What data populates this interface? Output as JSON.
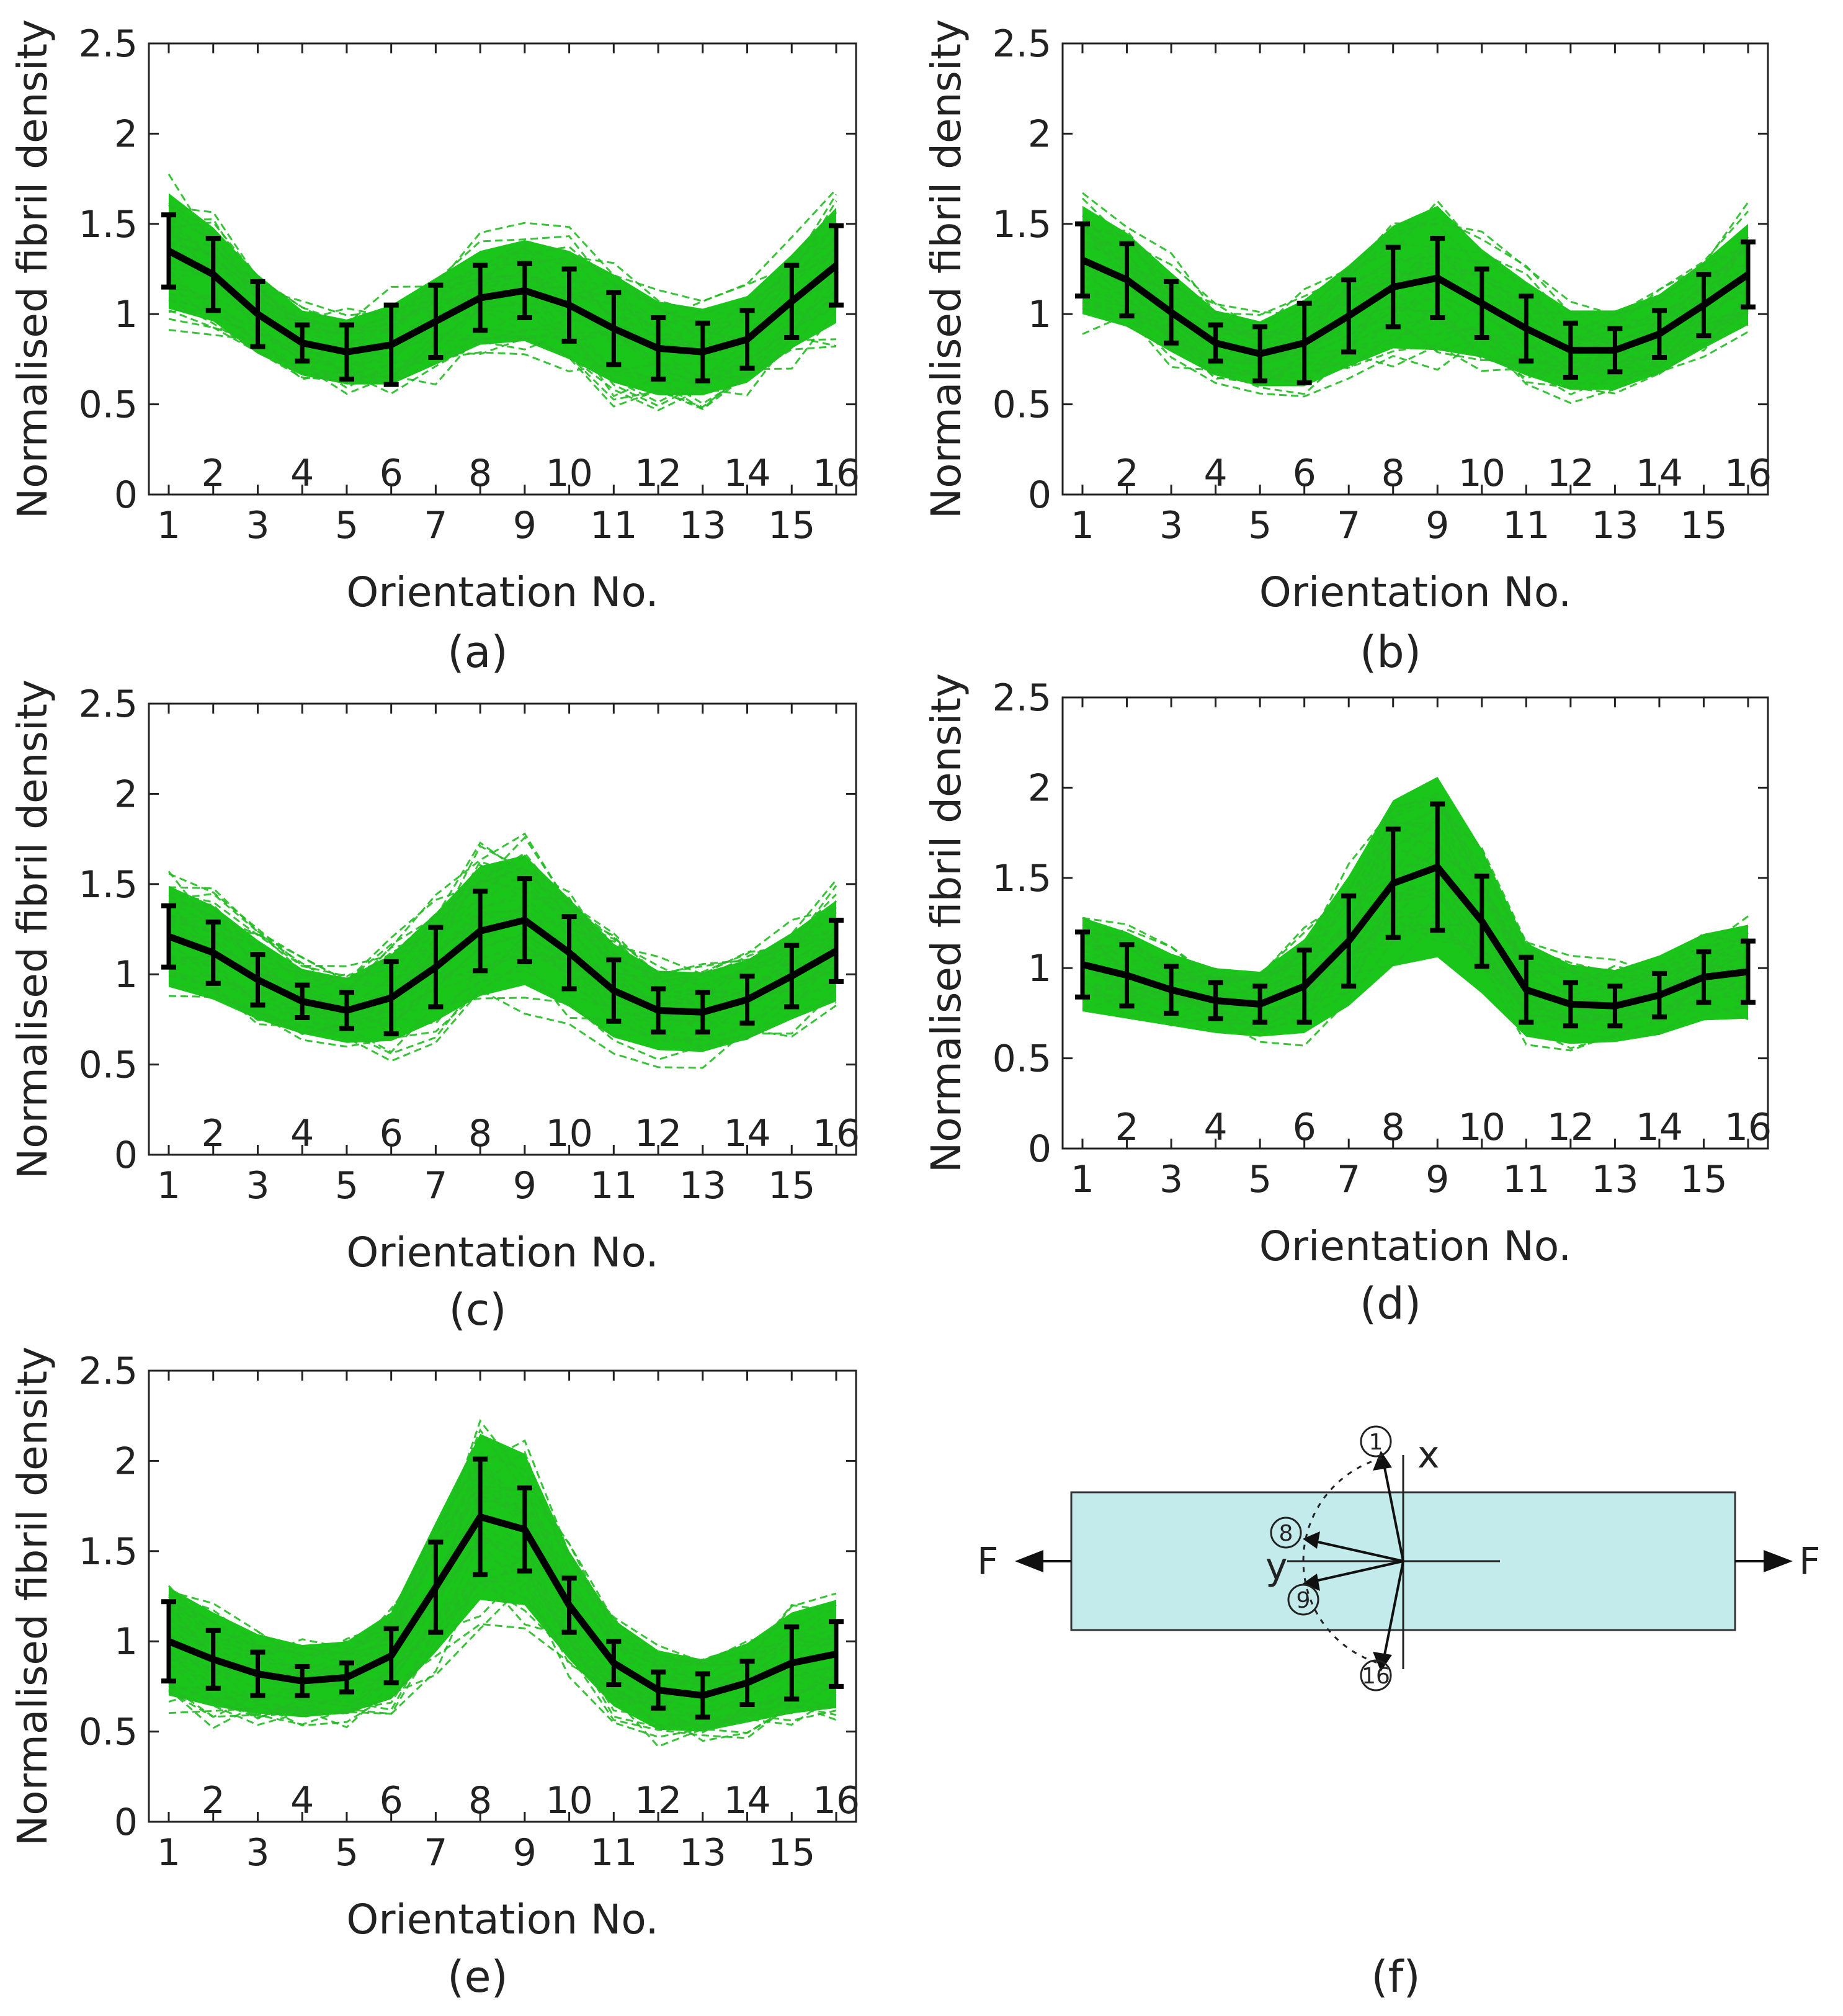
{
  "colors": {
    "band": "#00c000",
    "traces": "#22bb22",
    "mean": "#000000",
    "axis": "#222222",
    "specimen_fill": "#c3ebeb"
  },
  "axes": {
    "ylabel": "Normalised fibril density",
    "xlabel": "Orientation No.",
    "y_ticks": [
      "0",
      "0.5",
      "1",
      "1.5",
      "2",
      "2.5"
    ],
    "x_ticks_odd": [
      "1",
      "3",
      "5",
      "7",
      "9",
      "11",
      "13",
      "15"
    ],
    "x_ticks_even": [
      "2",
      "4",
      "6",
      "8",
      "10",
      "12",
      "14",
      "16"
    ]
  },
  "captions": {
    "a": "(a)",
    "b": "(b)",
    "c": "(c)",
    "d": "(d)",
    "e": "(e)",
    "f": "(f)"
  },
  "diagram": {
    "x_axis_label": "x",
    "y_axis_label": "y",
    "force_left": "F",
    "force_right": "F",
    "orientation_markers": [
      "1",
      "8",
      "9",
      "16"
    ]
  },
  "chart_data": [
    {
      "panel": "a",
      "type": "line",
      "xlabel": "Orientation No.",
      "ylabel": "Normalised fibril density",
      "xlim": [
        1,
        16
      ],
      "ylim": [
        0,
        2.5
      ],
      "x": [
        1,
        2,
        3,
        4,
        5,
        6,
        7,
        8,
        9,
        10,
        11,
        12,
        13,
        14,
        15,
        16
      ],
      "mean": [
        1.35,
        1.22,
        1.0,
        0.84,
        0.79,
        0.83,
        0.96,
        1.09,
        1.13,
        1.05,
        0.92,
        0.81,
        0.79,
        0.86,
        1.07,
        1.27
      ],
      "sd": [
        0.2,
        0.2,
        0.18,
        0.1,
        0.15,
        0.22,
        0.2,
        0.18,
        0.15,
        0.2,
        0.2,
        0.17,
        0.16,
        0.16,
        0.2,
        0.22
      ],
      "band_halfwidth": [
        0.32,
        0.26,
        0.22,
        0.18,
        0.18,
        0.22,
        0.24,
        0.26,
        0.28,
        0.3,
        0.3,
        0.26,
        0.24,
        0.24,
        0.26,
        0.32
      ],
      "grid": false
    },
    {
      "panel": "b",
      "type": "line",
      "xlabel": "Orientation No.",
      "ylabel": "Normalised fibril density",
      "xlim": [
        1,
        16
      ],
      "ylim": [
        0,
        2.5
      ],
      "x": [
        1,
        2,
        3,
        4,
        5,
        6,
        7,
        8,
        9,
        10,
        11,
        12,
        13,
        14,
        15,
        16
      ],
      "mean": [
        1.3,
        1.19,
        1.01,
        0.84,
        0.78,
        0.84,
        0.99,
        1.15,
        1.2,
        1.06,
        0.92,
        0.8,
        0.8,
        0.89,
        1.05,
        1.22
      ],
      "sd": [
        0.2,
        0.2,
        0.17,
        0.1,
        0.15,
        0.22,
        0.2,
        0.22,
        0.22,
        0.19,
        0.18,
        0.15,
        0.12,
        0.13,
        0.17,
        0.18
      ],
      "band_halfwidth": [
        0.3,
        0.26,
        0.22,
        0.18,
        0.18,
        0.24,
        0.28,
        0.34,
        0.4,
        0.3,
        0.26,
        0.22,
        0.22,
        0.22,
        0.24,
        0.28
      ],
      "grid": false
    },
    {
      "panel": "c",
      "type": "line",
      "xlabel": "Orientation No.",
      "ylabel": "Normalised fibril density",
      "xlim": [
        1,
        16
      ],
      "ylim": [
        0,
        2.5
      ],
      "x": [
        1,
        2,
        3,
        4,
        5,
        6,
        7,
        8,
        9,
        10,
        11,
        12,
        13,
        14,
        15,
        16
      ],
      "mean": [
        1.21,
        1.12,
        0.97,
        0.85,
        0.8,
        0.87,
        1.04,
        1.24,
        1.3,
        1.12,
        0.91,
        0.8,
        0.79,
        0.86,
        0.99,
        1.13
      ],
      "sd": [
        0.17,
        0.17,
        0.14,
        0.09,
        0.1,
        0.2,
        0.22,
        0.22,
        0.23,
        0.2,
        0.17,
        0.12,
        0.11,
        0.13,
        0.17,
        0.17
      ],
      "band_halfwidth": [
        0.28,
        0.26,
        0.22,
        0.18,
        0.18,
        0.24,
        0.3,
        0.36,
        0.36,
        0.3,
        0.26,
        0.22,
        0.22,
        0.22,
        0.24,
        0.28
      ],
      "grid": false
    },
    {
      "panel": "d",
      "type": "line",
      "xlabel": "Orientation No.",
      "ylabel": "Normalised fibril density",
      "xlim": [
        1,
        16
      ],
      "ylim": [
        0,
        2.5
      ],
      "x": [
        1,
        2,
        3,
        4,
        5,
        6,
        7,
        8,
        9,
        10,
        11,
        12,
        13,
        14,
        15,
        16
      ],
      "mean": [
        1.02,
        0.96,
        0.88,
        0.82,
        0.8,
        0.9,
        1.15,
        1.47,
        1.56,
        1.26,
        0.88,
        0.8,
        0.79,
        0.85,
        0.95,
        0.98
      ],
      "sd": [
        0.18,
        0.17,
        0.13,
        0.1,
        0.1,
        0.2,
        0.25,
        0.3,
        0.35,
        0.25,
        0.18,
        0.12,
        0.11,
        0.12,
        0.14,
        0.17
      ],
      "band_halfwidth": [
        0.26,
        0.24,
        0.2,
        0.18,
        0.18,
        0.26,
        0.36,
        0.46,
        0.5,
        0.4,
        0.26,
        0.22,
        0.2,
        0.22,
        0.24,
        0.26
      ],
      "grid": false
    },
    {
      "panel": "e",
      "type": "line",
      "xlabel": "Orientation No.",
      "ylabel": "Normalised fibril density",
      "xlim": [
        1,
        16
      ],
      "ylim": [
        0,
        2.5
      ],
      "x": [
        1,
        2,
        3,
        4,
        5,
        6,
        7,
        8,
        9,
        10,
        11,
        12,
        13,
        14,
        15,
        16
      ],
      "mean": [
        1.0,
        0.9,
        0.82,
        0.78,
        0.8,
        0.92,
        1.3,
        1.69,
        1.62,
        1.2,
        0.88,
        0.73,
        0.7,
        0.77,
        0.88,
        0.93
      ],
      "sd": [
        0.22,
        0.16,
        0.12,
        0.08,
        0.08,
        0.15,
        0.25,
        0.32,
        0.23,
        0.15,
        0.12,
        0.1,
        0.12,
        0.12,
        0.2,
        0.18
      ],
      "band_halfwidth": [
        0.3,
        0.26,
        0.22,
        0.2,
        0.2,
        0.24,
        0.36,
        0.46,
        0.42,
        0.3,
        0.24,
        0.22,
        0.2,
        0.22,
        0.28,
        0.3
      ],
      "grid": false
    }
  ]
}
